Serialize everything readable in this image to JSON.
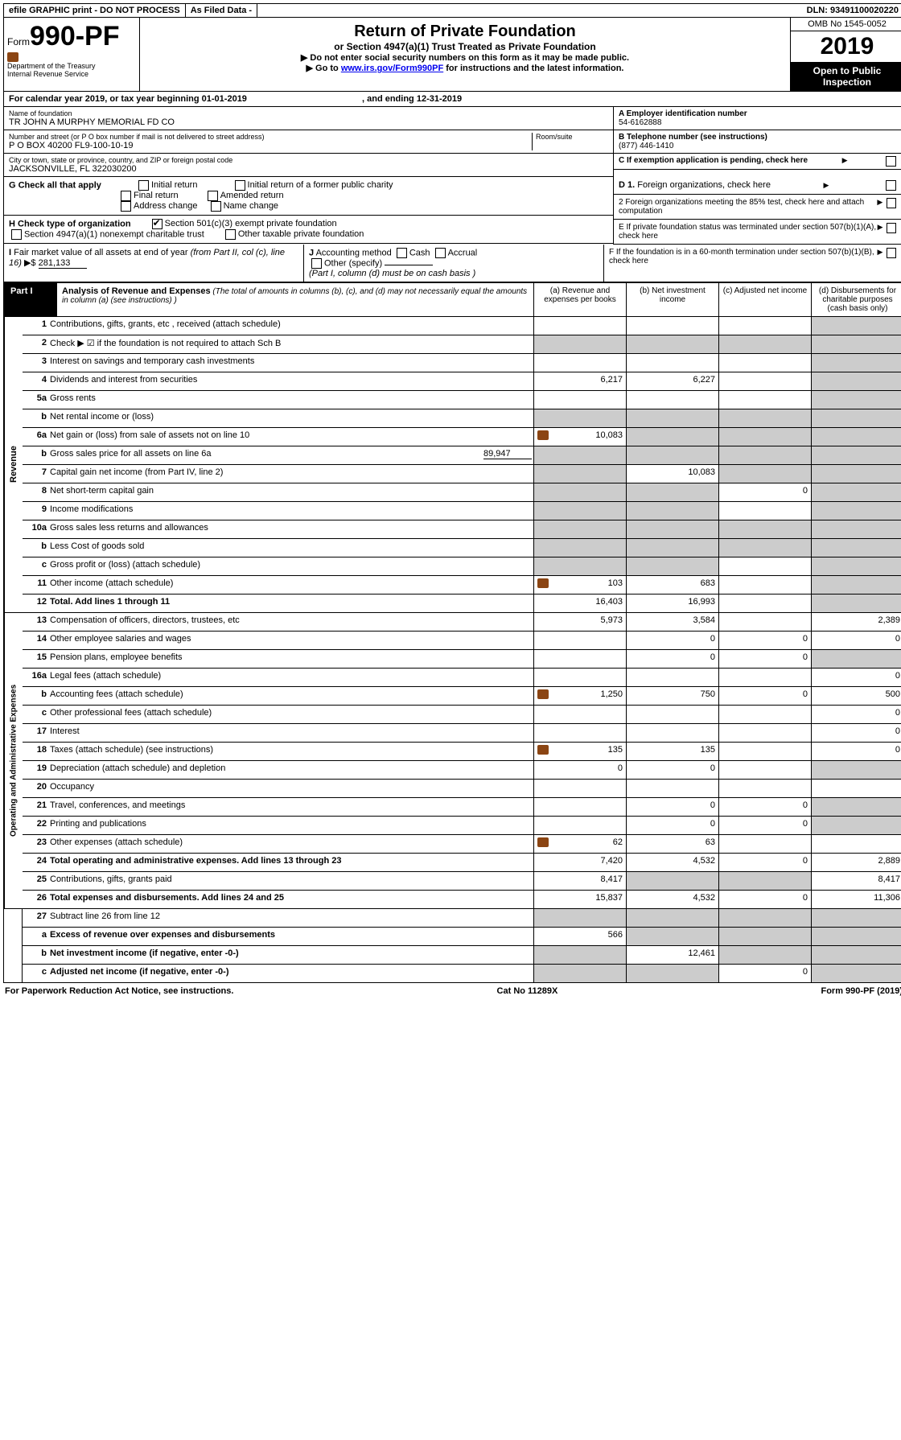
{
  "top": {
    "efile": "efile GRAPHIC print - DO NOT PROCESS",
    "asfiled": "As Filed Data -",
    "dln": "DLN: 93491100020220"
  },
  "header": {
    "form_prefix": "Form",
    "form_no": "990-PF",
    "dept": "Department of the Treasury",
    "irs": "Internal Revenue Service",
    "title": "Return of Private Foundation",
    "subtitle": "or Section 4947(a)(1) Trust Treated as Private Foundation",
    "note1": "▶ Do not enter social security numbers on this form as it may be made public.",
    "note2": "▶ Go to ",
    "link": "www.irs.gov/Form990PF",
    "note3": " for instructions and the latest information.",
    "omb": "OMB No 1545-0052",
    "year": "2019",
    "inspect": "Open to Public Inspection"
  },
  "calendar": {
    "pre": "For calendar year 2019, or tax year beginning ",
    "begin": "01-01-2019",
    "mid": ", and ending ",
    "end": "12-31-2019"
  },
  "ident": {
    "name_lbl": "Name of foundation",
    "name": "TR JOHN A MURPHY MEMORIAL FD CO",
    "addr_lbl": "Number and street (or P O  box number if mail is not delivered to street address)",
    "room_lbl": "Room/suite",
    "addr": "P O BOX 40200 FL9-100-10-19",
    "city_lbl": "City or town, state or province, country, and ZIP or foreign postal code",
    "city": "JACKSONVILLE, FL  322030200",
    "a_lbl": "A Employer identification number",
    "a_val": "54-6162888",
    "b_lbl": "B Telephone number (see instructions)",
    "b_val": "(877) 446-1410",
    "c_lbl": "C If exemption application is pending, check here"
  },
  "checks": {
    "g": "G Check all that apply",
    "initial": "Initial return",
    "initial_former": "Initial return of a former public charity",
    "final": "Final return",
    "amended": "Amended return",
    "addr_ch": "Address change",
    "name_ch": "Name change",
    "h": "H Check type of organization",
    "h1": "Section 501(c)(3) exempt private foundation",
    "h2": "Section 4947(a)(1) nonexempt charitable trust",
    "h3": "Other taxable private foundation",
    "d1": "D 1. Foreign organizations, check here",
    "d2": "2  Foreign organizations meeting the 85% test, check here and attach computation",
    "e": "E  If private foundation status was terminated under section 507(b)(1)(A), check here",
    "i": "I Fair market value of all assets at end of year (from Part II, col  (c), line 16) ▶$ ",
    "i_val": "281,133",
    "j": "J Accounting method",
    "cash": "Cash",
    "accrual": "Accrual",
    "other": "Other (specify)",
    "j_note": "(Part I, column (d) must be on cash basis )",
    "f": "F  If the foundation is in a 60-month termination under section 507(b)(1)(B), check here"
  },
  "part1": {
    "label": "Part I",
    "title": "Analysis of Revenue and Expenses",
    "title_note": "(The total of amounts in columns (b), (c), and (d) may not necessarily equal the amounts in column (a) (see instructions) )",
    "cols": {
      "a": "(a)  Revenue and expenses per books",
      "b": "(b)  Net investment income",
      "c": "(c)  Adjusted net income",
      "d": "(d)  Disbursements for charitable purposes (cash basis only)"
    }
  },
  "revenue_label": "Revenue",
  "expenses_label": "Operating and Administrative Expenses",
  "rows": {
    "r1": {
      "n": "1",
      "d": "Contributions, gifts, grants, etc , received (attach schedule)"
    },
    "r2": {
      "n": "2",
      "d": "Check ▶ ☑ if the foundation is not required to attach Sch B"
    },
    "r3": {
      "n": "3",
      "d": "Interest on savings and temporary cash investments"
    },
    "r4": {
      "n": "4",
      "d": "Dividends and interest from securities",
      "a": "6,217",
      "b": "6,227"
    },
    "r5a": {
      "n": "5a",
      "d": "Gross rents"
    },
    "r5b": {
      "n": "b",
      "d": "Net rental income or (loss)"
    },
    "r6a": {
      "n": "6a",
      "d": "Net gain or (loss) from sale of assets not on line 10",
      "a": "10,083"
    },
    "r6b": {
      "n": "b",
      "d": "Gross sales price for all assets on line 6a",
      "v": "89,947"
    },
    "r7": {
      "n": "7",
      "d": "Capital gain net income (from Part IV, line 2)",
      "b": "10,083"
    },
    "r8": {
      "n": "8",
      "d": "Net short-term capital gain",
      "c": "0"
    },
    "r9": {
      "n": "9",
      "d": "Income modifications"
    },
    "r10a": {
      "n": "10a",
      "d": "Gross sales less returns and allowances"
    },
    "r10b": {
      "n": "b",
      "d": "Less  Cost of goods sold"
    },
    "r10c": {
      "n": "c",
      "d": "Gross profit or (loss) (attach schedule)"
    },
    "r11": {
      "n": "11",
      "d": "Other income (attach schedule)",
      "a": "103",
      "b": "683"
    },
    "r12": {
      "n": "12",
      "d": "Total. Add lines 1 through 11",
      "a": "16,403",
      "b": "16,993"
    },
    "r13": {
      "n": "13",
      "d": "Compensation of officers, directors, trustees, etc",
      "a": "5,973",
      "b": "3,584",
      "d4": "2,389"
    },
    "r14": {
      "n": "14",
      "d": "Other employee salaries and wages",
      "b": "0",
      "c": "0",
      "d4": "0"
    },
    "r15": {
      "n": "15",
      "d": "Pension plans, employee benefits",
      "b": "0",
      "c": "0"
    },
    "r16a": {
      "n": "16a",
      "d": "Legal fees (attach schedule)",
      "d4": "0"
    },
    "r16b": {
      "n": "b",
      "d": "Accounting fees (attach schedule)",
      "a": "1,250",
      "b": "750",
      "c": "0",
      "d4": "500"
    },
    "r16c": {
      "n": "c",
      "d": "Other professional fees (attach schedule)",
      "d4": "0"
    },
    "r17": {
      "n": "17",
      "d": "Interest",
      "d4": "0"
    },
    "r18": {
      "n": "18",
      "d": "Taxes (attach schedule) (see instructions)",
      "a": "135",
      "b": "135",
      "d4": "0"
    },
    "r19": {
      "n": "19",
      "d": "Depreciation (attach schedule) and depletion",
      "a": "0",
      "b": "0"
    },
    "r20": {
      "n": "20",
      "d": "Occupancy"
    },
    "r21": {
      "n": "21",
      "d": "Travel, conferences, and meetings",
      "b": "0",
      "c": "0"
    },
    "r22": {
      "n": "22",
      "d": "Printing and publications",
      "b": "0",
      "c": "0"
    },
    "r23": {
      "n": "23",
      "d": "Other expenses (attach schedule)",
      "a": "62",
      "b": "63"
    },
    "r24": {
      "n": "24",
      "d": "Total operating and administrative expenses. Add lines 13 through 23",
      "a": "7,420",
      "b": "4,532",
      "c": "0",
      "d4": "2,889"
    },
    "r25": {
      "n": "25",
      "d": "Contributions, gifts, grants paid",
      "a": "8,417",
      "d4": "8,417"
    },
    "r26": {
      "n": "26",
      "d": "Total expenses and disbursements. Add lines 24 and 25",
      "a": "15,837",
      "b": "4,532",
      "c": "0",
      "d4": "11,306"
    },
    "r27": {
      "n": "27",
      "d": "Subtract line 26 from line 12"
    },
    "r27a": {
      "n": "a",
      "d": "Excess of revenue over expenses and disbursements",
      "a": "566"
    },
    "r27b": {
      "n": "b",
      "d": "Net investment income (if negative, enter -0-)",
      "b": "12,461"
    },
    "r27c": {
      "n": "c",
      "d": "Adjusted net income (if negative, enter -0-)",
      "c": "0"
    }
  },
  "footer": {
    "left": "For Paperwork Reduction Act Notice, see instructions.",
    "mid": "Cat  No  11289X",
    "right": "Form 990-PF (2019)"
  }
}
